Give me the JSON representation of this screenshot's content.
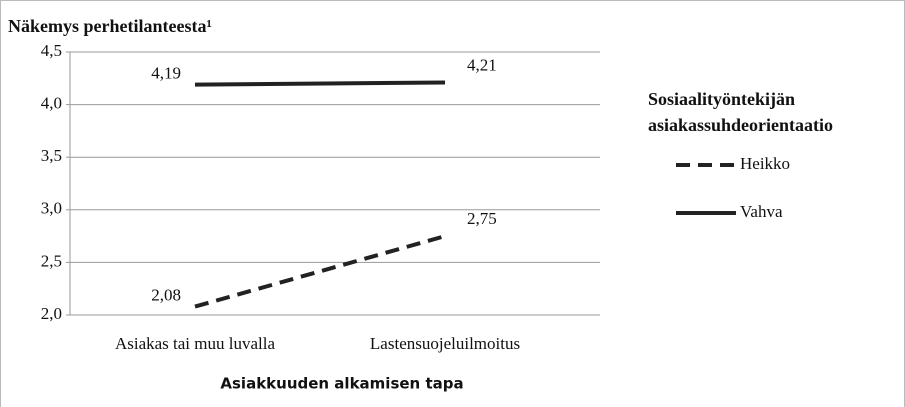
{
  "chart_data": {
    "type": "line",
    "title": "Näkemys perhetilanteesta¹",
    "x_label": "Asiakkuuden alkamisen tapa",
    "legend_title": "Sosiaalityöntekijän asiakassuhdeorientaatio",
    "legend_position": "right",
    "categories": [
      "Asiakas tai muu luvalla",
      "Lastensuojeluilmoitus"
    ],
    "series": [
      {
        "name": "Heikko",
        "color": "#222222",
        "dash": true,
        "values": [
          2.08,
          2.75
        ],
        "value_labels": [
          "2,08",
          "2,75"
        ]
      },
      {
        "name": "Vahva",
        "color": "#222222",
        "dash": false,
        "values": [
          4.19,
          4.21
        ],
        "value_labels": [
          "4,19",
          "4,21"
        ]
      }
    ],
    "ylim": [
      2,
      4.5
    ],
    "yticks": [
      {
        "value": 2,
        "label": "2,0"
      },
      {
        "value": 2.5,
        "label": "2,5"
      },
      {
        "value": 3,
        "label": "3,0"
      },
      {
        "value": 3.5,
        "label": "3,5"
      },
      {
        "value": 4,
        "label": "4,0"
      },
      {
        "value": 4.5,
        "label": "4,5"
      }
    ],
    "grid": true
  }
}
